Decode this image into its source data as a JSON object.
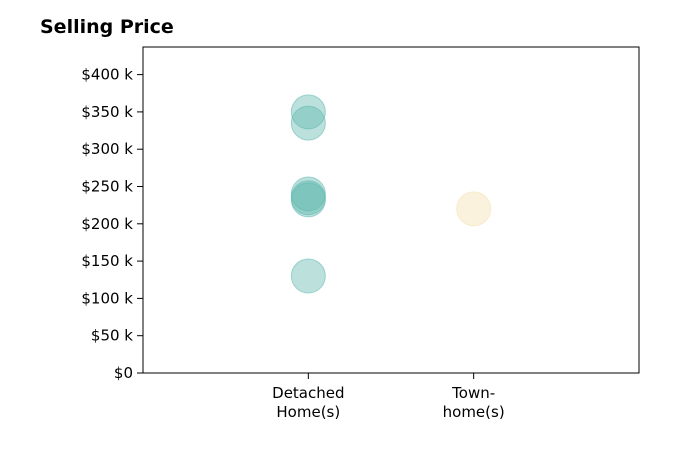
{
  "chart_data": {
    "type": "scatter",
    "title": "Selling Price",
    "xlabel": "",
    "ylabel": "",
    "categories": [
      [
        "Detached",
        "Home(s)"
      ],
      [
        "Town-",
        "home(s)"
      ]
    ],
    "x_range": [
      0,
      3
    ],
    "y_ticks": [
      0,
      50,
      100,
      150,
      200,
      250,
      300,
      350,
      400
    ],
    "y_tick_labels": [
      "$0",
      "$50 k",
      "$100 k",
      "$150 k",
      "$200 k",
      "$250 k",
      "$300 k",
      "$350 k",
      "$400 k"
    ],
    "ylim": [
      0,
      437
    ],
    "grid": false,
    "series": [
      {
        "color": "#5fb7ae",
        "category_index": 0,
        "values": [
          350,
          335,
          240,
          235,
          232,
          130
        ]
      },
      {
        "color": "#f5dfae",
        "category_index": 1,
        "values": [
          220
        ]
      }
    ]
  }
}
